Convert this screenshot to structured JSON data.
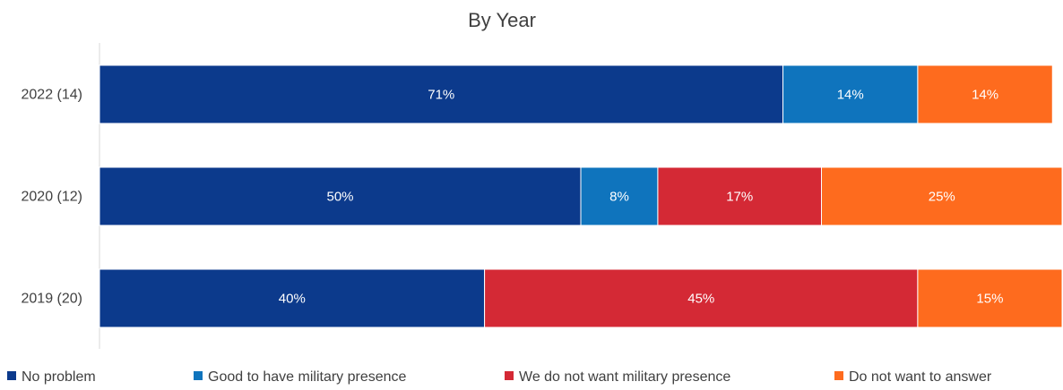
{
  "chart_data": {
    "type": "bar",
    "orientation": "horizontal",
    "stacked": true,
    "normalized": true,
    "title": "By Year",
    "xlabel": "",
    "ylabel": "",
    "xlim": [
      0,
      100
    ],
    "categories": [
      "2022 (14)",
      "2020 (12)",
      "2019 (20)"
    ],
    "series": [
      {
        "name": "No problem",
        "color": "#0c3a8c",
        "values": [
          71,
          50,
          40
        ],
        "labels": [
          "71%",
          "50%",
          "40%"
        ]
      },
      {
        "name": "Good to have military presence",
        "color": "#0f74bd",
        "values": [
          14,
          8,
          0
        ],
        "labels": [
          "14%",
          "8%",
          ""
        ]
      },
      {
        "name": "We do not want military presence",
        "color": "#d42935",
        "values": [
          0,
          17,
          45
        ],
        "labels": [
          "",
          "17%",
          "45%"
        ]
      },
      {
        "name": "Do not want to answer",
        "color": "#fe6b1e",
        "values": [
          14,
          25,
          15
        ],
        "labels": [
          "14%",
          "25%",
          "15%"
        ]
      }
    ],
    "legend": "bottom",
    "grid": false
  }
}
